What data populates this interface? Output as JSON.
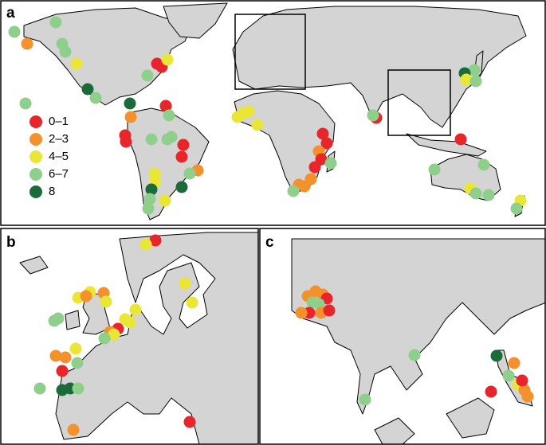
{
  "panels": [
    {
      "label": "a"
    },
    {
      "label": "b"
    },
    {
      "label": "c"
    }
  ],
  "legend": [
    {
      "label": "0–1",
      "color": "#e8252a"
    },
    {
      "label": "2–3",
      "color": "#f5912c"
    },
    {
      "label": "4–5",
      "color": "#eae635"
    },
    {
      "label": "6–7",
      "color": "#8fcf8c"
    },
    {
      "label": "8",
      "color": "#1b6b3a"
    }
  ]
}
